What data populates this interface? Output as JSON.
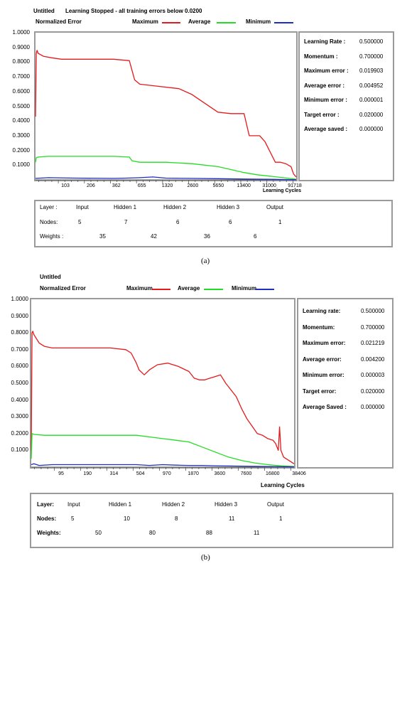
{
  "panels": [
    {
      "window_title": "Untitled",
      "status": "Learning Stopped - all training errors below 0.0200",
      "ylabel": "Normalized Error",
      "legend": [
        {
          "label": "Maximum",
          "color": "#e41a1c"
        },
        {
          "label": "Average",
          "color": "#22dd22"
        },
        {
          "label": "Minimum",
          "color": "#1f2fbf"
        }
      ],
      "yticks": [
        "1.0000",
        "0.9000",
        "0.8000",
        "0.7000",
        "0.6000",
        "0.5000",
        "0.4000",
        "0.3000",
        "0.2000",
        "0.1000"
      ],
      "xticks": [
        "103",
        "206",
        "362",
        "655",
        "1320",
        "2600",
        "5650",
        "13400",
        "31000",
        "91718"
      ],
      "xlabel": "Learning Cycles",
      "info": [
        {
          "label": "Learning Rate :",
          "value": "0.500000"
        },
        {
          "label": "Momentum :",
          "value": "0.700000"
        },
        {
          "label": "Maximum error :",
          "value": "0.019903"
        },
        {
          "label": "Average error :",
          "value": "0.004952"
        },
        {
          "label": "Minimum error :",
          "value": "0.000001"
        },
        {
          "label": "Target error :",
          "value": "0.020000"
        },
        {
          "label": "Average saved :",
          "value": "0.000000"
        }
      ],
      "layers": {
        "layer_label": "Layer :",
        "nodes_label": "Nodes:",
        "weights_label": "Weights :",
        "names": [
          "Input",
          "Hidden 1",
          "Hidden 2",
          "Hidden 3",
          "Output"
        ],
        "nodes": [
          "5",
          "7",
          "6",
          "6",
          "1"
        ],
        "weights": [
          "35",
          "42",
          "36",
          "6"
        ]
      },
      "caption": "(a)"
    },
    {
      "window_title": "Untitled",
      "status": "",
      "ylabel": "Normalized Error",
      "legend": [
        {
          "label": "Maximum",
          "color": "#e41a1c"
        },
        {
          "label": "Average",
          "color": "#22dd22"
        },
        {
          "label": "Minimum",
          "color": "#1f2fbf"
        }
      ],
      "yticks": [
        "1.0000",
        "0.9000",
        "0.8000",
        "0.7000",
        "0.6000",
        "0.5000",
        "0.4000",
        "0.3000",
        "0.2000",
        "0.1000"
      ],
      "xticks": [
        "95",
        "190",
        "314",
        "504",
        "970",
        "1870",
        "3600",
        "7600",
        "16800",
        "38406"
      ],
      "xlabel": "Learning Cycles",
      "info": [
        {
          "label": "Learning rate:",
          "value": "0.500000"
        },
        {
          "label": "Momentum:",
          "value": "0.700000"
        },
        {
          "label": "Maximum error:",
          "value": "0.021219"
        },
        {
          "label": "Average error:",
          "value": "0.004200"
        },
        {
          "label": "Minimum error:",
          "value": "0.000003"
        },
        {
          "label": "Target error:",
          "value": "0.020000"
        },
        {
          "label": "Average Saved :",
          "value": "0.000000"
        }
      ],
      "layers": {
        "layer_label": "Layer:",
        "nodes_label": "Nodes:",
        "weights_label": "Weights:",
        "names": [
          "Input",
          "Hidden 1",
          "Hidden 2",
          "Hidden 3",
          "Output"
        ],
        "nodes": [
          "5",
          "10",
          "8",
          "11",
          "1"
        ],
        "weights": [
          "50",
          "80",
          "88",
          "11"
        ]
      },
      "caption": "(b)"
    }
  ],
  "chart_data": [
    {
      "type": "line",
      "ylim": [
        0,
        1.0
      ],
      "xlim": [
        0,
        100
      ],
      "x_scale_note": "x axis spans learning cycles on a non-linear (log-like) scale indexed by tick position 0-100",
      "series": [
        {
          "name": "Maximum",
          "x": [
            0,
            0.3,
            0.6,
            1,
            3,
            6,
            10,
            20,
            30,
            36,
            38,
            40,
            45,
            55,
            60,
            65,
            70,
            75,
            80,
            82,
            84,
            86,
            88,
            90,
            92,
            94,
            96,
            98,
            99,
            100
          ],
          "y": [
            0.43,
            0.86,
            0.88,
            0.86,
            0.84,
            0.83,
            0.82,
            0.82,
            0.82,
            0.81,
            0.68,
            0.65,
            0.64,
            0.62,
            0.58,
            0.52,
            0.46,
            0.45,
            0.45,
            0.3,
            0.3,
            0.3,
            0.26,
            0.19,
            0.12,
            0.12,
            0.11,
            0.09,
            0.04,
            0.02
          ]
        },
        {
          "name": "Average",
          "x": [
            0,
            0.3,
            1,
            5,
            10,
            20,
            30,
            36,
            37,
            40,
            50,
            60,
            70,
            75,
            80,
            85,
            90,
            95,
            100
          ],
          "y": [
            0.12,
            0.15,
            0.155,
            0.16,
            0.16,
            0.16,
            0.16,
            0.155,
            0.13,
            0.12,
            0.12,
            0.11,
            0.09,
            0.07,
            0.05,
            0.035,
            0.025,
            0.015,
            0.005
          ]
        },
        {
          "name": "Minimum",
          "x": [
            0,
            5,
            15,
            30,
            35,
            40,
            45,
            50,
            60,
            70,
            80,
            90,
            100
          ],
          "y": [
            0.01,
            0.015,
            0.012,
            0.01,
            0.012,
            0.015,
            0.02,
            0.012,
            0.01,
            0.008,
            0.006,
            0.004,
            0.001
          ]
        }
      ]
    },
    {
      "type": "line",
      "ylim": [
        0,
        1.0
      ],
      "xlim": [
        0,
        100
      ],
      "x_scale_note": "x axis spans learning cycles on a non-linear (log-like) scale indexed by tick position 0-100",
      "series": [
        {
          "name": "Maximum",
          "x": [
            0,
            0.3,
            0.6,
            1,
            3,
            5,
            8,
            12,
            20,
            30,
            36,
            38,
            40,
            41,
            43,
            45,
            48,
            52,
            56,
            60,
            62,
            64,
            66,
            68,
            70,
            72,
            74,
            78,
            80,
            82,
            86,
            88,
            90,
            92,
            93,
            94,
            94.5,
            95,
            96,
            97,
            98,
            100
          ],
          "y": [
            0.1,
            0.8,
            0.81,
            0.79,
            0.74,
            0.72,
            0.71,
            0.71,
            0.71,
            0.71,
            0.7,
            0.68,
            0.62,
            0.58,
            0.55,
            0.58,
            0.61,
            0.62,
            0.6,
            0.57,
            0.53,
            0.52,
            0.52,
            0.53,
            0.54,
            0.55,
            0.5,
            0.42,
            0.35,
            0.29,
            0.2,
            0.19,
            0.17,
            0.16,
            0.14,
            0.1,
            0.24,
            0.1,
            0.06,
            0.05,
            0.04,
            0.02
          ]
        },
        {
          "name": "Average",
          "x": [
            0,
            0.3,
            1,
            5,
            15,
            30,
            38,
            40,
            45,
            50,
            55,
            60,
            65,
            70,
            75,
            80,
            85,
            90,
            95,
            100
          ],
          "y": [
            0.05,
            0.2,
            0.195,
            0.19,
            0.19,
            0.19,
            0.19,
            0.19,
            0.18,
            0.17,
            0.16,
            0.15,
            0.12,
            0.09,
            0.06,
            0.04,
            0.025,
            0.015,
            0.008,
            0.004
          ]
        },
        {
          "name": "Minimum",
          "x": [
            0,
            1,
            3,
            8,
            15,
            25,
            35,
            40,
            45,
            50,
            55,
            60,
            65,
            70,
            80,
            90,
            100
          ],
          "y": [
            0.015,
            0.02,
            0.01,
            0.015,
            0.015,
            0.015,
            0.015,
            0.015,
            0.01,
            0.015,
            0.012,
            0.01,
            0.01,
            0.008,
            0.006,
            0.004,
            0.002
          ]
        }
      ]
    }
  ]
}
